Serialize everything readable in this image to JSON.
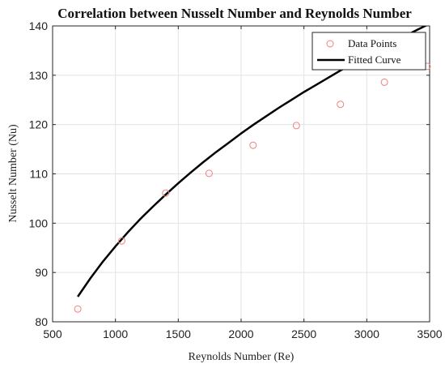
{
  "chart_data": {
    "type": "scatter",
    "title": "Correlation between Nusselt Number and Reynolds Number",
    "xlabel": "Reynolds Number (Re)",
    "ylabel": "Nusselt Number (Nu)",
    "xlim": [
      500,
      3500
    ],
    "ylim": [
      80,
      140
    ],
    "xticks": [
      500,
      1000,
      1500,
      2000,
      2500,
      3000,
      3500
    ],
    "yticks": [
      80,
      90,
      100,
      110,
      120,
      130,
      140
    ],
    "grid": true,
    "legend_position": "top-right",
    "series": [
      {
        "name": "Data Points",
        "kind": "scatter",
        "marker": "open-circle",
        "color": "#f08080",
        "x": [
          700,
          1050,
          1400,
          1745,
          2095,
          2440,
          2790,
          3140,
          3480
        ],
        "y": [
          82.6,
          96.4,
          106.1,
          110.1,
          115.8,
          119.8,
          124.1,
          128.6,
          131.8
        ]
      },
      {
        "name": "Fitted Curve",
        "kind": "line",
        "color": "#000000",
        "x": [
          700,
          800,
          900,
          1000,
          1100,
          1200,
          1300,
          1400,
          1500,
          1600,
          1700,
          1800,
          1900,
          2000,
          2100,
          2200,
          2300,
          2400,
          2500,
          2600,
          2700,
          2800,
          2900,
          3000,
          3100,
          3200,
          3300,
          3400,
          3480
        ],
        "y": [
          85.1,
          88.8,
          92.2,
          95.3,
          98.2,
          100.9,
          103.4,
          105.8,
          108.1,
          110.3,
          112.4,
          114.4,
          116.3,
          118.2,
          120.0,
          121.7,
          123.4,
          125.0,
          126.6,
          128.1,
          129.6,
          131.1,
          132.5,
          133.9,
          135.3,
          136.6,
          137.9,
          139.2,
          140.2
        ]
      }
    ]
  }
}
